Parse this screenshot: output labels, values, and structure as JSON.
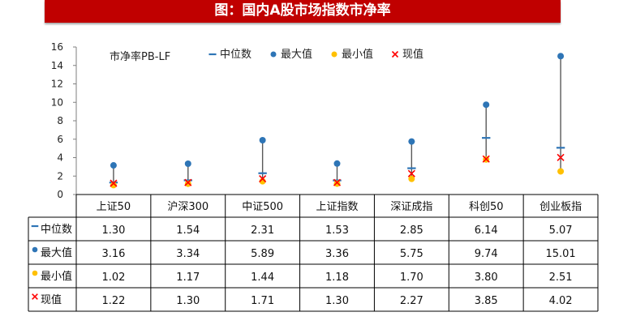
{
  "title": "图：国内A股市场指数市净率",
  "chart_data": {
    "type": "scatter",
    "chart_label": "市净率PB-LF",
    "categories": [
      "上证50",
      "沪深300",
      "中证500",
      "上证指数",
      "深证成指",
      "科创50",
      "创业板指"
    ],
    "ylim": [
      0,
      16
    ],
    "yticks": [
      0,
      2,
      4,
      6,
      8,
      10,
      12,
      14,
      16
    ],
    "legend_position": "top",
    "series": [
      {
        "name": "中位数",
        "marker": "dash",
        "color": "#2e75b6",
        "values": [
          1.3,
          1.54,
          2.31,
          1.53,
          2.85,
          6.14,
          5.07
        ],
        "labels": [
          "1.30",
          "1.54",
          "2.31",
          "1.53",
          "2.85",
          "6.14",
          "5.07"
        ]
      },
      {
        "name": "最大值",
        "marker": "circle",
        "color": "#2e75b6",
        "values": [
          3.16,
          3.34,
          5.89,
          3.36,
          5.75,
          9.74,
          15.01
        ],
        "labels": [
          "3.16",
          "3.34",
          "5.89",
          "3.36",
          "5.75",
          "9.74",
          "15.01"
        ]
      },
      {
        "name": "最小值",
        "marker": "circle",
        "color": "#ffc000",
        "values": [
          1.02,
          1.17,
          1.44,
          1.18,
          1.7,
          3.8,
          2.51
        ],
        "labels": [
          "1.02",
          "1.17",
          "1.44",
          "1.18",
          "1.70",
          "3.80",
          "2.51"
        ]
      },
      {
        "name": "现值",
        "marker": "x",
        "color": "#ff0000",
        "values": [
          1.22,
          1.3,
          1.71,
          1.3,
          2.27,
          3.85,
          4.02
        ],
        "labels": [
          "1.22",
          "1.30",
          "1.71",
          "1.30",
          "2.27",
          "3.85",
          "4.02"
        ]
      }
    ],
    "range_line_color": "#595959"
  }
}
